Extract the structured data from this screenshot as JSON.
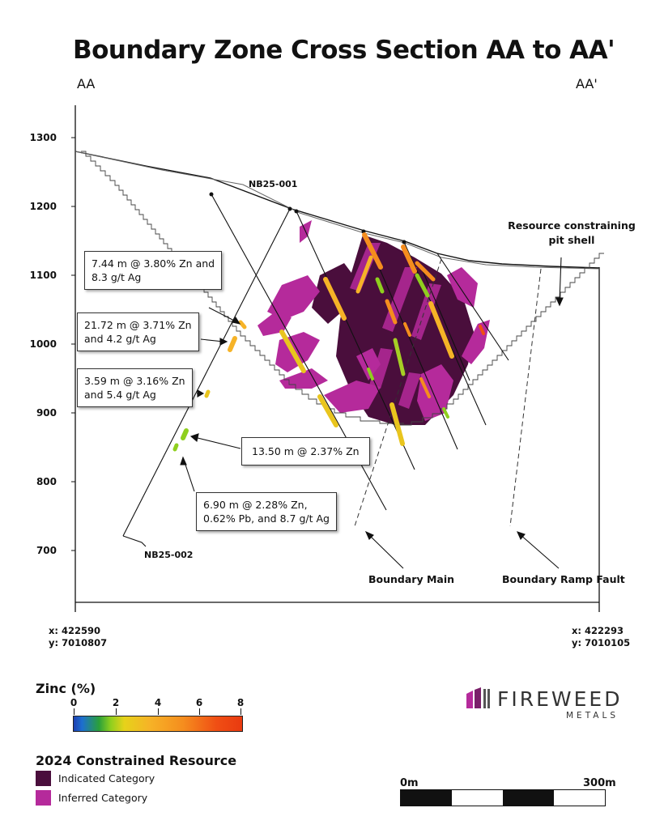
{
  "title": "Boundary Zone Cross Section AA to AA'",
  "section_start_label": "AA",
  "section_end_label": "AA'",
  "elevation_ticks": [
    "1300",
    "1200",
    "1100",
    "1000",
    "900",
    "800",
    "700"
  ],
  "drillholes": {
    "hole_1": "NB25-001",
    "hole_2": "NB25-002"
  },
  "annotations": {
    "pit_shell": "Resource constraining pit shell",
    "boundary_main": "Boundary Main",
    "ramp_fault": "Boundary Ramp Fault"
  },
  "intercepts": [
    {
      "line1": "7.44 m @ 3.80% Zn and",
      "line2": "8.3 g/t Ag"
    },
    {
      "line1": "21.72 m @ 3.71% Zn",
      "line2": "and 4.2 g/t Ag"
    },
    {
      "line1": "3.59 m @ 3.16% Zn",
      "line2": "and 5.4 g/t Ag"
    },
    {
      "line1": "13.50 m @ 2.37% Zn"
    },
    {
      "line1": "6.90 m @ 2.28% Zn,",
      "line2": "0.62% Pb, and 8.7 g/t Ag"
    }
  ],
  "coords": {
    "start_x": "x: 422590",
    "start_y": "y: 7010807",
    "end_x": "x: 422293",
    "end_y": "y: 7010105"
  },
  "legend": {
    "zinc_title": "Zinc (%)",
    "zinc_ticks": [
      "0",
      "2",
      "4",
      "6",
      "8"
    ],
    "resource_title": "2024 Constrained Resource",
    "indicated": "Indicated Category",
    "inferred": "Inferred Category"
  },
  "colors": {
    "indicated": "#4a0e3c",
    "inferred": "#b52a9b",
    "zinc_scale": [
      "#1b3fb0",
      "#2aa03a",
      "#8fcf1e",
      "#e6d21a",
      "#f6b327",
      "#f58d1e",
      "#e93a10"
    ]
  },
  "logo": {
    "name": "FIREWEED",
    "sub": "METALS"
  },
  "scale": {
    "start": "0m",
    "end": "300m"
  }
}
